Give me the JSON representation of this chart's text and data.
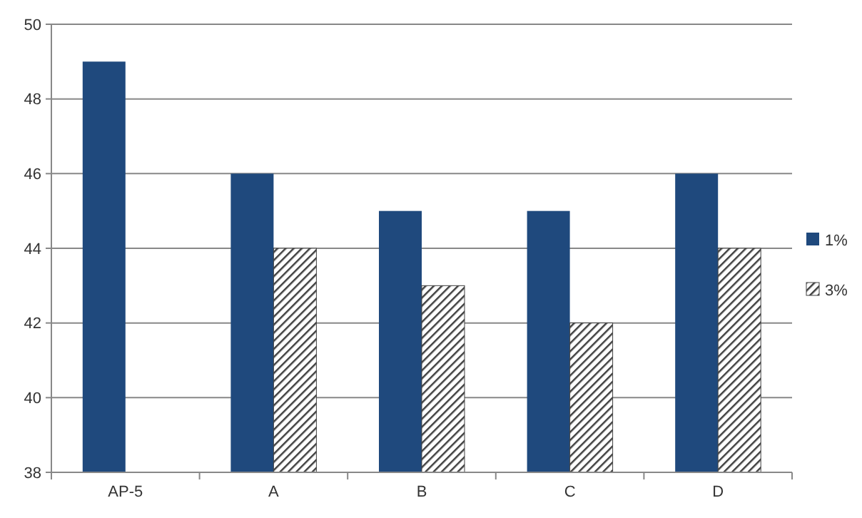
{
  "chart_data": {
    "type": "bar",
    "categories": [
      "AP-5",
      "A",
      "B",
      "C",
      "D"
    ],
    "series": [
      {
        "name": "1%",
        "color": "#1f497d",
        "values": [
          49,
          46,
          45,
          45,
          46
        ]
      },
      {
        "name": "3%",
        "color": "#404040",
        "values": [
          null,
          44,
          43,
          42,
          44
        ]
      }
    ],
    "ylim": [
      38,
      50
    ],
    "yticks": [
      38,
      40,
      42,
      44,
      46,
      48,
      50
    ],
    "grid": "y",
    "legend": "right"
  }
}
